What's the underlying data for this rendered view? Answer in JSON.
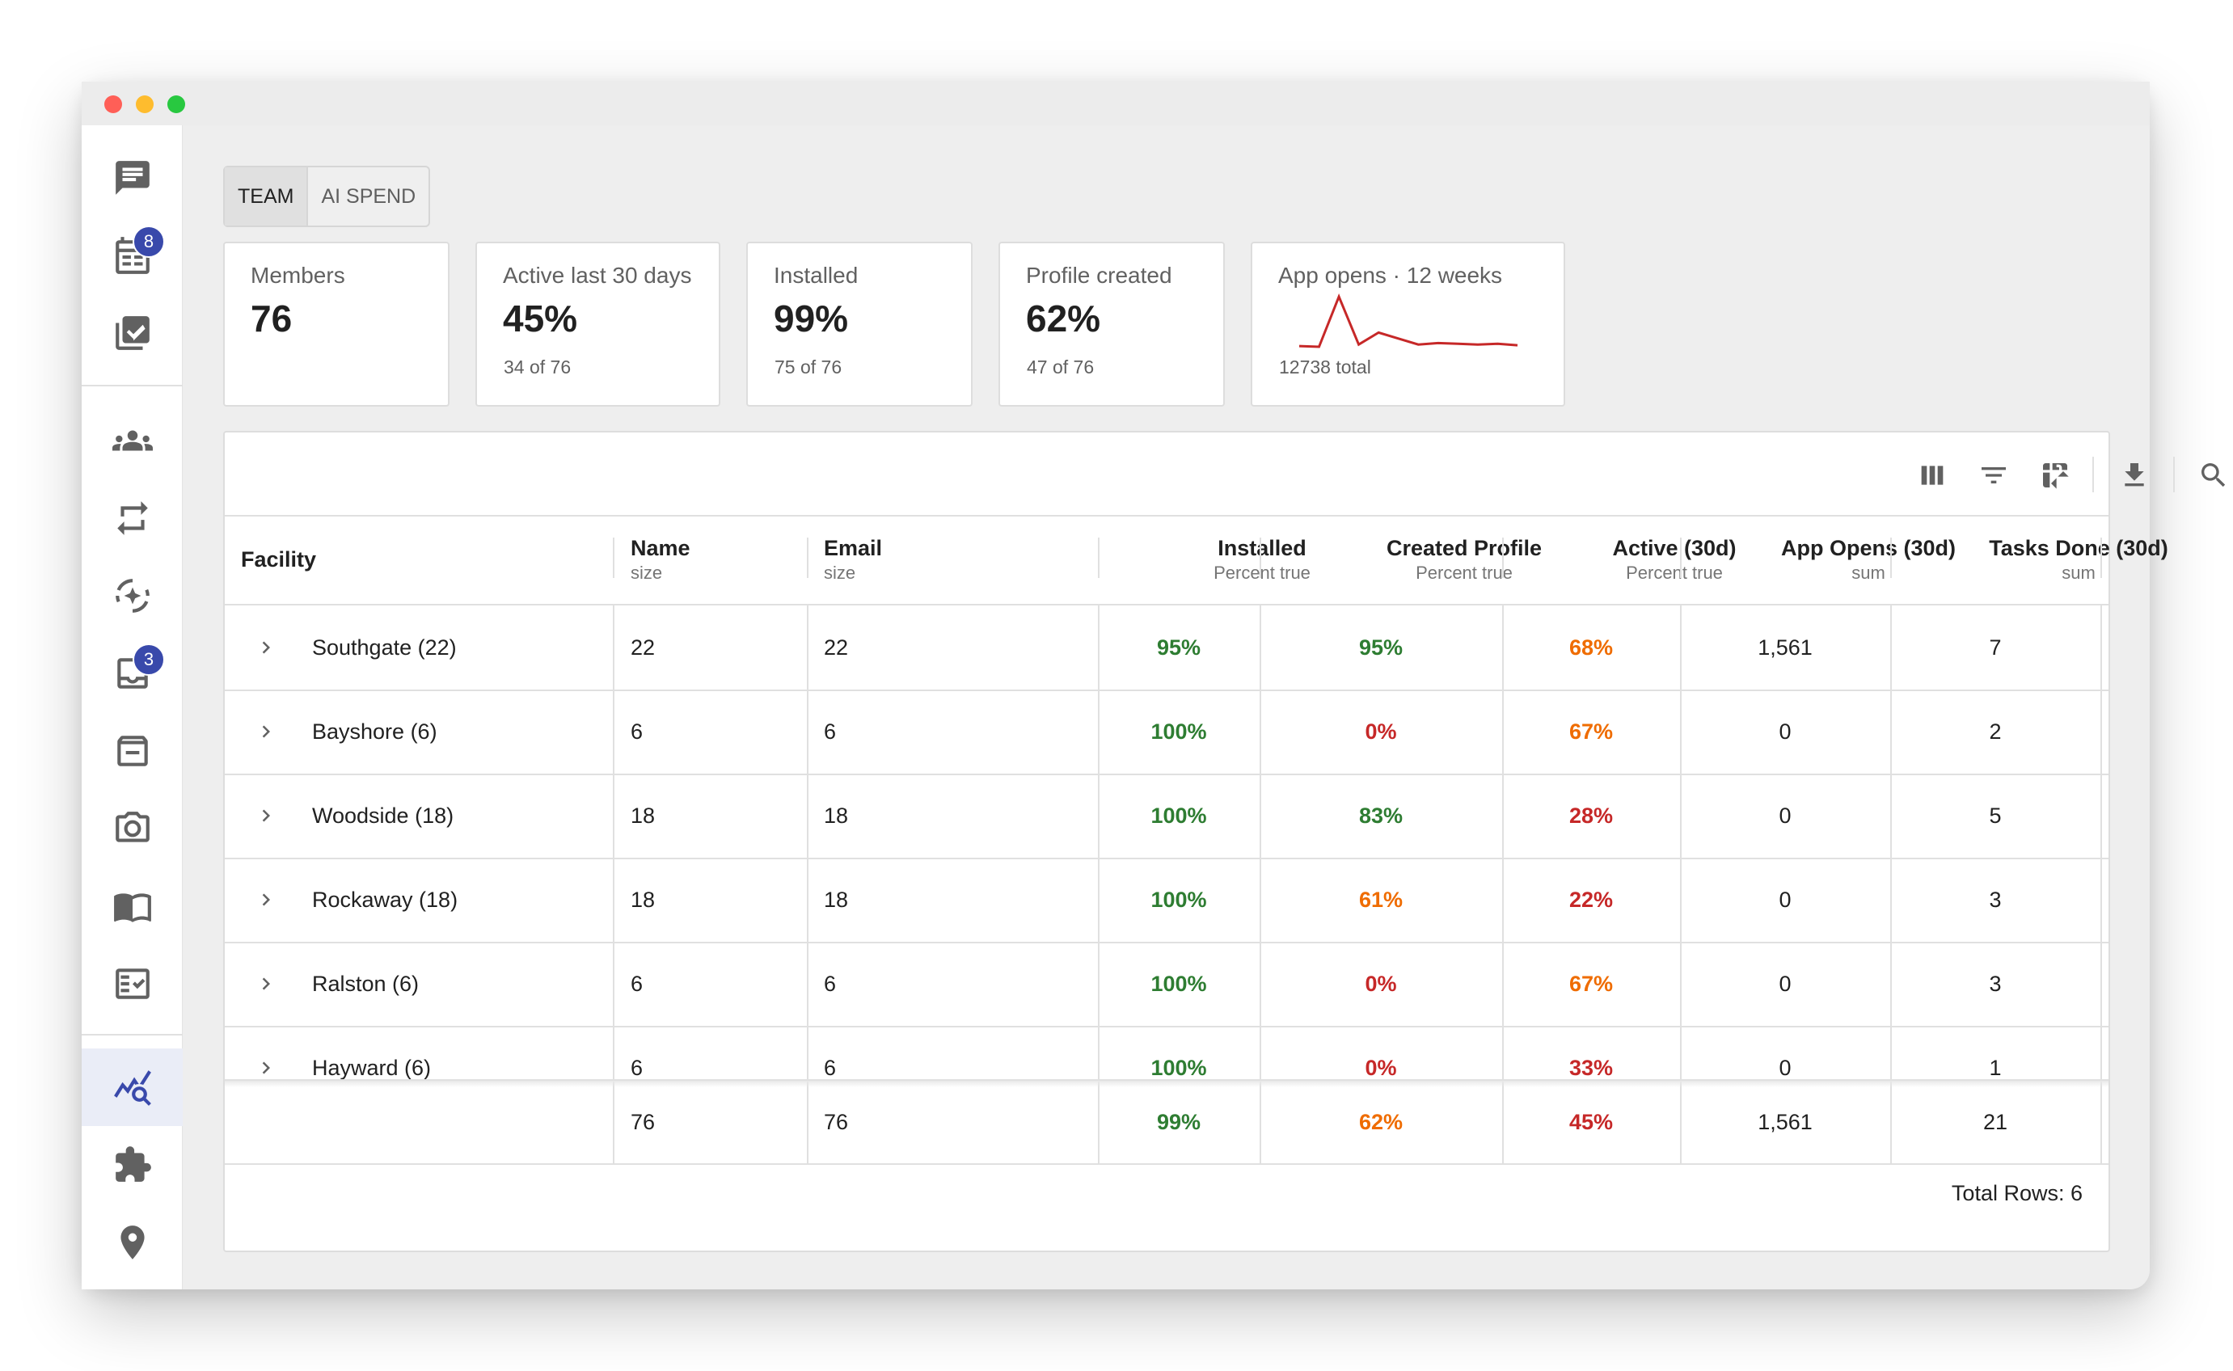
{
  "tabs": [
    {
      "label": "TEAM",
      "active": true
    },
    {
      "label": "AI SPEND",
      "active": false
    }
  ],
  "sidebar": {
    "badges": {
      "calendar": "8",
      "inbox": "3"
    },
    "active_item": "analytics"
  },
  "stats": [
    {
      "label": "Members",
      "value": "76",
      "sub": ""
    },
    {
      "label": "Active last 30 days",
      "value": "45%",
      "sub": "34 of 76"
    },
    {
      "label": "Installed",
      "value": "99%",
      "sub": "75 of 76"
    },
    {
      "label": "Profile created",
      "value": "62%",
      "sub": "47 of 76"
    }
  ],
  "app_opens_card": {
    "label": "App opens · 12 weeks",
    "total": "12738 total",
    "sparkline": [
      30,
      25,
      360,
      40,
      120,
      80,
      40,
      50,
      45,
      40,
      45,
      35
    ]
  },
  "table": {
    "columns": [
      {
        "title": "Facility",
        "sub": ""
      },
      {
        "title": "Name",
        "sub": "size"
      },
      {
        "title": "Email",
        "sub": "size"
      },
      {
        "title": "Installed",
        "sub": "Percent true"
      },
      {
        "title": "Created Profile",
        "sub": "Percent true"
      },
      {
        "title": "Active (30d)",
        "sub": "Percent true"
      },
      {
        "title": "App Opens (30d)",
        "sub": "sum"
      },
      {
        "title": "Tasks Done (30d)",
        "sub": "sum"
      }
    ],
    "rows": [
      {
        "facility": "Southgate (22)",
        "name": "22",
        "email": "22",
        "installed": "95%",
        "created": "95%",
        "active": "68%",
        "opens": "1,561",
        "tasks": "7"
      },
      {
        "facility": "Bayshore (6)",
        "name": "6",
        "email": "6",
        "installed": "100%",
        "created": "0%",
        "active": "67%",
        "opens": "0",
        "tasks": "2"
      },
      {
        "facility": "Woodside (18)",
        "name": "18",
        "email": "18",
        "installed": "100%",
        "created": "83%",
        "active": "28%",
        "opens": "0",
        "tasks": "5"
      },
      {
        "facility": "Rockaway (18)",
        "name": "18",
        "email": "18",
        "installed": "100%",
        "created": "61%",
        "active": "22%",
        "opens": "0",
        "tasks": "3"
      },
      {
        "facility": "Ralston (6)",
        "name": "6",
        "email": "6",
        "installed": "100%",
        "created": "0%",
        "active": "67%",
        "opens": "0",
        "tasks": "3"
      },
      {
        "facility": "Hayward (6)",
        "name": "6",
        "email": "6",
        "installed": "100%",
        "created": "0%",
        "active": "33%",
        "opens": "0",
        "tasks": "1"
      }
    ],
    "totals": {
      "name": "76",
      "email": "76",
      "installed": "99%",
      "created": "62%",
      "active": "45%",
      "opens": "1,561",
      "tasks": "21"
    },
    "footer": "Total Rows: 6"
  },
  "colors": {
    "green": "#2e7d32",
    "orange": "#ef6c00",
    "red": "#c62828",
    "accent": "#3949ab",
    "sparkline": "#c62828"
  }
}
